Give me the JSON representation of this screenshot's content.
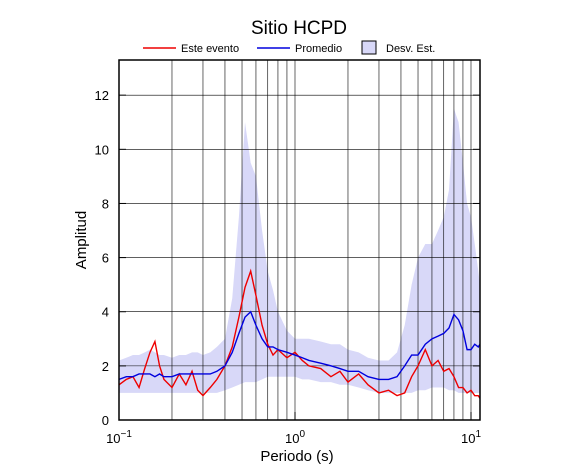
{
  "chart_data": {
    "type": "line",
    "title": "Sitio HCPD",
    "x_label": "Periodo (s)",
    "y_label": "Amplitud",
    "log_x": true,
    "grid": true,
    "xlim": [
      0.1,
      11.25
    ],
    "ylim": [
      0,
      13.3
    ],
    "xticks": [
      {
        "value": 0.1,
        "label": "10",
        "exponent": "−1"
      },
      {
        "value": 1,
        "label": "10",
        "exponent": "0"
      },
      {
        "value": 10,
        "label": "10",
        "exponent": "1"
      }
    ],
    "xgrid": [
      0.2,
      0.3,
      0.4,
      0.5,
      0.6,
      0.7,
      0.8,
      0.9,
      1,
      2,
      3,
      4,
      5,
      6,
      7,
      8,
      9,
      10
    ],
    "yticks": [
      0,
      2,
      4,
      6,
      8,
      10,
      12
    ],
    "x": [
      0.1,
      0.11,
      0.12,
      0.13,
      0.14,
      0.15,
      0.16,
      0.17,
      0.18,
      0.2,
      0.22,
      0.24,
      0.26,
      0.28,
      0.3,
      0.33,
      0.36,
      0.4,
      0.44,
      0.48,
      0.52,
      0.56,
      0.6,
      0.65,
      0.7,
      0.75,
      0.8,
      0.9,
      1.0,
      1.1,
      1.2,
      1.4,
      1.6,
      1.8,
      2.0,
      2.3,
      2.6,
      3.0,
      3.4,
      3.8,
      4.2,
      4.6,
      5.0,
      5.5,
      6.0,
      6.5,
      7.0,
      7.5,
      8.0,
      8.5,
      9.0,
      9.5,
      10,
      10.5,
      11,
      11.25
    ],
    "series": [
      {
        "name": "Este evento",
        "color": "#ee0000",
        "values": [
          1.3,
          1.5,
          1.6,
          1.2,
          1.9,
          2.5,
          2.9,
          2.0,
          1.5,
          1.2,
          1.7,
          1.3,
          1.8,
          1.1,
          0.9,
          1.2,
          1.5,
          2.0,
          2.7,
          3.8,
          4.9,
          5.5,
          4.6,
          3.5,
          2.8,
          2.4,
          2.6,
          2.3,
          2.5,
          2.2,
          2.0,
          1.9,
          1.6,
          1.8,
          1.4,
          1.7,
          1.3,
          1.0,
          1.1,
          0.9,
          1.0,
          1.6,
          2.0,
          2.6,
          2.0,
          2.2,
          1.8,
          1.9,
          1.6,
          1.2,
          1.2,
          1.0,
          1.1,
          0.9,
          0.9,
          0.8
        ]
      },
      {
        "name": "Promedio",
        "color": "#0000dd",
        "values": [
          1.5,
          1.6,
          1.6,
          1.7,
          1.7,
          1.7,
          1.6,
          1.7,
          1.6,
          1.6,
          1.7,
          1.7,
          1.7,
          1.7,
          1.7,
          1.7,
          1.8,
          2.0,
          2.5,
          3.2,
          3.8,
          4.0,
          3.5,
          3.0,
          2.7,
          2.7,
          2.6,
          2.5,
          2.4,
          2.3,
          2.2,
          2.1,
          2.0,
          1.9,
          1.8,
          1.8,
          1.6,
          1.5,
          1.5,
          1.6,
          2.0,
          2.4,
          2.4,
          2.8,
          3.0,
          3.1,
          3.2,
          3.4,
          3.9,
          3.7,
          3.3,
          2.6,
          2.6,
          2.8,
          2.7,
          2.8
        ]
      },
      {
        "name": "Desv. Est.",
        "color": "#d8d8f8",
        "band": true,
        "high": [
          2.2,
          2.3,
          2.4,
          2.4,
          2.5,
          2.6,
          2.5,
          2.4,
          2.4,
          2.3,
          2.4,
          2.4,
          2.5,
          2.5,
          2.4,
          2.5,
          2.7,
          3.0,
          4.5,
          7.5,
          11.0,
          9.5,
          9.0,
          7.0,
          5.5,
          4.8,
          4.0,
          3.3,
          3.0,
          3.0,
          3.0,
          2.9,
          2.8,
          2.8,
          2.6,
          2.5,
          2.3,
          2.2,
          2.2,
          2.5,
          3.5,
          5.0,
          6.0,
          6.5,
          6.5,
          7.0,
          7.5,
          8.5,
          11.5,
          11.0,
          9.5,
          8.0,
          7.5,
          6.5,
          5.5,
          5.0
        ],
        "low": [
          1.0,
          1.0,
          1.0,
          1.0,
          1.0,
          1.0,
          1.0,
          1.0,
          1.0,
          1.0,
          1.0,
          1.0,
          1.0,
          1.0,
          1.0,
          1.0,
          1.0,
          1.1,
          1.2,
          1.3,
          1.4,
          1.4,
          1.4,
          1.5,
          1.6,
          1.6,
          1.6,
          1.6,
          1.6,
          1.5,
          1.5,
          1.4,
          1.4,
          1.3,
          1.3,
          1.2,
          1.1,
          1.0,
          1.0,
          1.0,
          1.0,
          1.0,
          1.1,
          1.1,
          1.2,
          1.2,
          1.2,
          1.1,
          1.1,
          1.0,
          1.0,
          1.0,
          1.0,
          1.0,
          1.0,
          1.0
        ]
      }
    ]
  }
}
